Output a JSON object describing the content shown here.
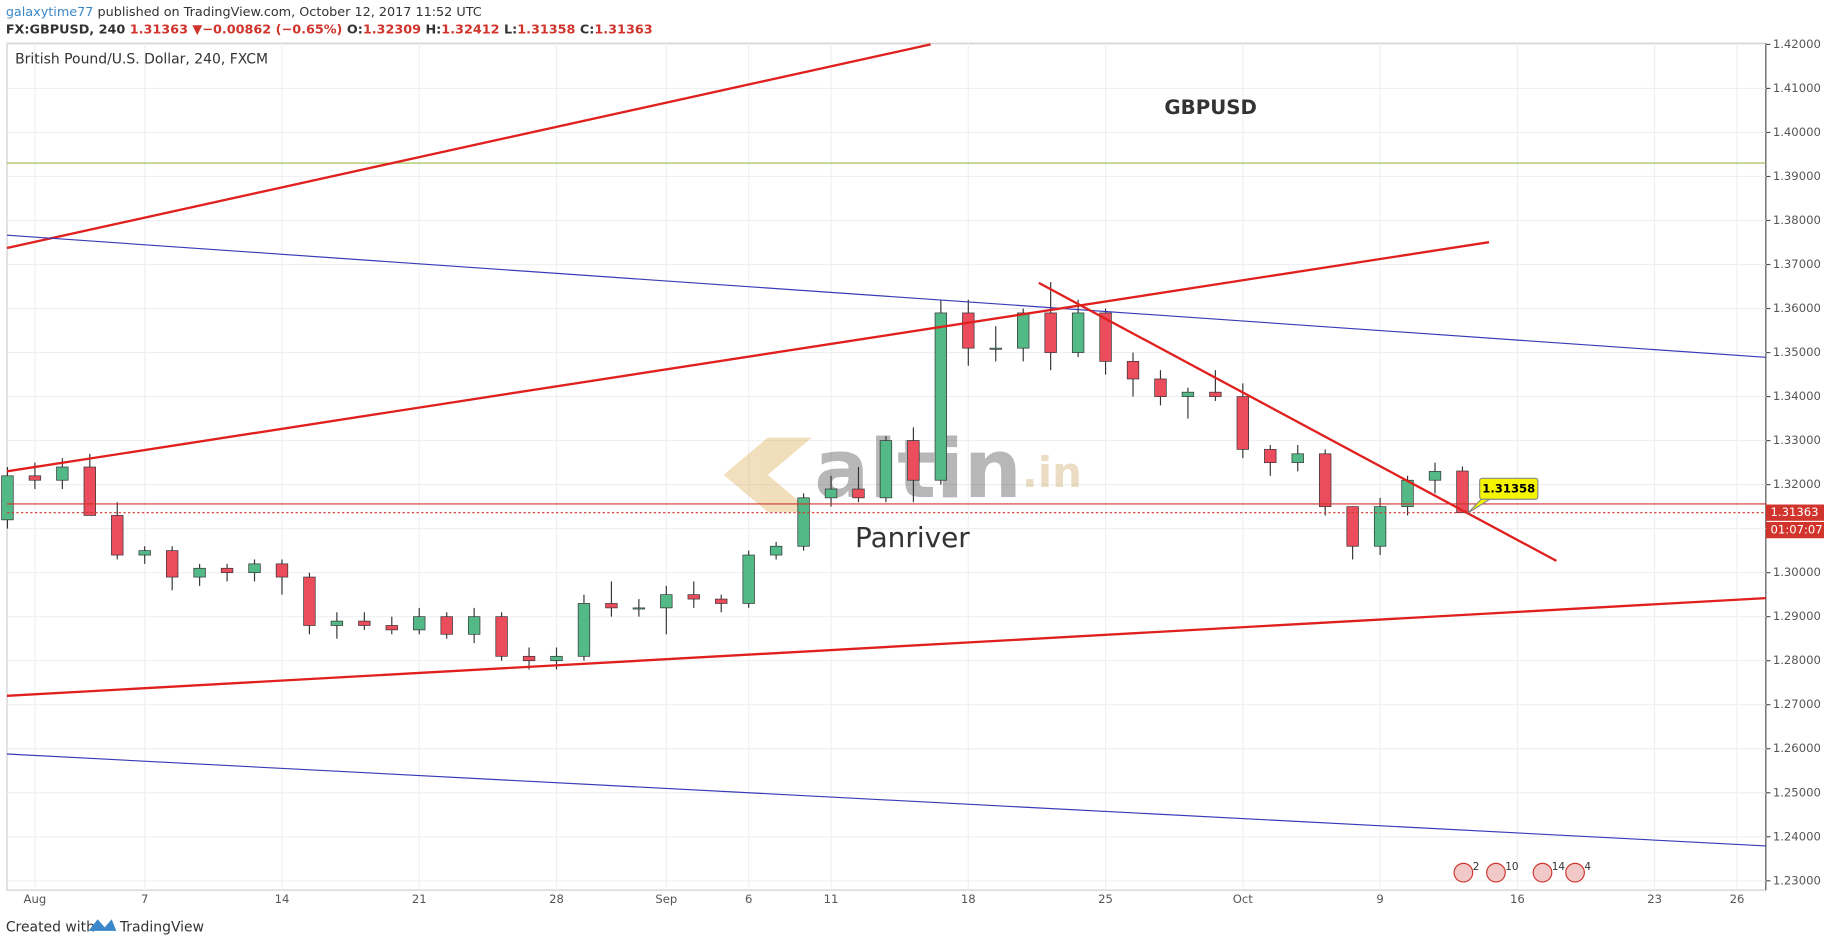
{
  "chart_data": {
    "type": "candlestick",
    "header": {
      "author": "galaxytime77",
      "published": "published on TradingView.com, October 12, 2017 11:52 UTC",
      "symbol": "FX:GBPUSD, 240",
      "last": 1.31363,
      "direction": "▼",
      "change": "−0.00862 (−0.65%)",
      "o_label": "O:",
      "open": 1.32309,
      "h_label": "H:",
      "high": 1.32412,
      "l_label": "L:",
      "low": 1.31358,
      "c_label": "C:",
      "close": 1.31363
    },
    "legend": "British Pound/U.S. Dollar, 240, FXCM",
    "title": "GBPUSD",
    "watermark": "altin",
    "watermark_suffix": ".in",
    "author_tag": "Panriver",
    "last_price": 1.31363,
    "countdown": "01:07:07",
    "callout_price": 1.31358,
    "events": [
      "2",
      "10",
      "14",
      "4"
    ],
    "footer": {
      "created": "Created with",
      "brand": "TradingView"
    },
    "up_color": "#53b987",
    "down_color": "#eb4d5c",
    "categories": [
      null,
      "Aug",
      null,
      null,
      null,
      "7",
      null,
      null,
      null,
      null,
      "14",
      null,
      null,
      null,
      null,
      "21",
      null,
      null,
      null,
      null,
      "28",
      null,
      null,
      null,
      "Sep",
      null,
      null,
      "6",
      null,
      null,
      "11",
      null,
      null,
      null,
      null,
      "18",
      null,
      null,
      null,
      null,
      "25",
      null,
      null,
      null,
      null,
      "Oct",
      null,
      null,
      null,
      null,
      "9",
      null,
      null,
      null,
      null,
      "16",
      null,
      null,
      null,
      null,
      "23",
      null,
      null,
      "26",
      null
    ],
    "candles": [
      [
        1.312,
        1.324,
        1.31,
        1.322
      ],
      [
        1.322,
        1.325,
        1.319,
        1.321
      ],
      [
        1.321,
        1.326,
        1.319,
        1.324
      ],
      [
        1.324,
        1.327,
        1.313,
        1.313
      ],
      [
        1.313,
        1.316,
        1.303,
        1.304
      ],
      [
        1.304,
        1.306,
        1.302,
        1.305
      ],
      [
        1.305,
        1.306,
        1.296,
        1.299
      ],
      [
        1.299,
        1.302,
        1.297,
        1.301
      ],
      [
        1.301,
        1.302,
        1.298,
        1.3
      ],
      [
        1.3,
        1.303,
        1.298,
        1.302
      ],
      [
        1.302,
        1.303,
        1.295,
        1.299
      ],
      [
        1.299,
        1.3,
        1.286,
        1.288
      ],
      [
        1.288,
        1.291,
        1.285,
        1.289
      ],
      [
        1.289,
        1.291,
        1.287,
        1.288
      ],
      [
        1.288,
        1.29,
        1.286,
        1.287
      ],
      [
        1.287,
        1.292,
        1.286,
        1.29
      ],
      [
        1.29,
        1.291,
        1.285,
        1.286
      ],
      [
        1.286,
        1.292,
        1.284,
        1.29
      ],
      [
        1.29,
        1.291,
        1.28,
        1.281
      ],
      [
        1.281,
        1.283,
        1.278,
        1.28
      ],
      [
        1.28,
        1.283,
        1.278,
        1.281
      ],
      [
        1.281,
        1.295,
        1.28,
        1.293
      ],
      [
        1.293,
        1.298,
        1.29,
        1.292
      ],
      [
        1.292,
        1.294,
        1.29,
        1.292
      ],
      [
        1.292,
        1.297,
        1.286,
        1.295
      ],
      [
        1.295,
        1.298,
        1.292,
        1.294
      ],
      [
        1.294,
        1.295,
        1.291,
        1.293
      ],
      [
        1.293,
        1.305,
        1.292,
        1.304
      ],
      [
        1.304,
        1.307,
        1.303,
        1.306
      ],
      [
        1.306,
        1.318,
        1.305,
        1.317
      ],
      [
        1.317,
        1.322,
        1.315,
        1.319
      ],
      [
        1.319,
        1.324,
        1.316,
        1.317
      ],
      [
        1.317,
        1.331,
        1.316,
        1.33
      ],
      [
        1.33,
        1.333,
        1.316,
        1.321
      ],
      [
        1.321,
        1.362,
        1.32,
        1.359
      ],
      [
        1.359,
        1.362,
        1.347,
        1.351
      ],
      [
        1.351,
        1.356,
        1.348,
        1.351
      ],
      [
        1.351,
        1.36,
        1.348,
        1.359
      ],
      [
        1.359,
        1.366,
        1.346,
        1.35
      ],
      [
        1.35,
        1.362,
        1.349,
        1.359
      ],
      [
        1.359,
        1.36,
        1.345,
        1.348
      ],
      [
        1.348,
        1.35,
        1.34,
        1.344
      ],
      [
        1.344,
        1.346,
        1.338,
        1.34
      ],
      [
        1.34,
        1.342,
        1.335,
        1.341
      ],
      [
        1.341,
        1.346,
        1.339,
        1.34
      ],
      [
        1.34,
        1.343,
        1.326,
        1.328
      ],
      [
        1.328,
        1.329,
        1.322,
        1.325
      ],
      [
        1.325,
        1.329,
        1.323,
        1.327
      ],
      [
        1.327,
        1.328,
        1.313,
        1.315
      ],
      [
        1.315,
        1.315,
        1.303,
        1.306
      ],
      [
        1.306,
        1.317,
        1.304,
        1.315
      ],
      [
        1.315,
        1.322,
        1.313,
        1.321
      ],
      [
        1.321,
        1.325,
        1.318,
        1.323
      ],
      [
        1.32309,
        1.32412,
        1.31358,
        1.31363
      ],
      null,
      null,
      null,
      null,
      null,
      null,
      null,
      null,
      null,
      null,
      null
    ],
    "ylim": [
      1.228,
      1.42
    ],
    "yticks": [
      {
        "value": 1.23,
        "label": "1.23000"
      },
      {
        "value": 1.24,
        "label": "1.24000"
      },
      {
        "value": 1.25,
        "label": "1.25000"
      },
      {
        "value": 1.26,
        "label": "1.26000"
      },
      {
        "value": 1.27,
        "label": "1.27000"
      },
      {
        "value": 1.28,
        "label": "1.28000"
      },
      {
        "value": 1.29,
        "label": "1.29000"
      },
      {
        "value": 1.3,
        "label": "1.30000"
      },
      {
        "value": 1.31,
        "label": "1.31000"
      },
      {
        "value": 1.32,
        "label": "1.32000"
      },
      {
        "value": 1.33,
        "label": "1.33000"
      },
      {
        "value": 1.34,
        "label": "1.34000"
      },
      {
        "value": 1.35,
        "label": "1.35000"
      },
      {
        "value": 1.36,
        "label": "1.36000"
      },
      {
        "value": 1.37,
        "label": "1.37000"
      },
      {
        "value": 1.38,
        "label": "1.38000"
      },
      {
        "value": 1.39,
        "label": "1.39000"
      },
      {
        "value": 1.4,
        "label": "1.40000"
      },
      {
        "value": 1.41,
        "label": "1.41000"
      },
      {
        "value": 1.42,
        "label": "1.42000"
      }
    ],
    "grid": true
  }
}
